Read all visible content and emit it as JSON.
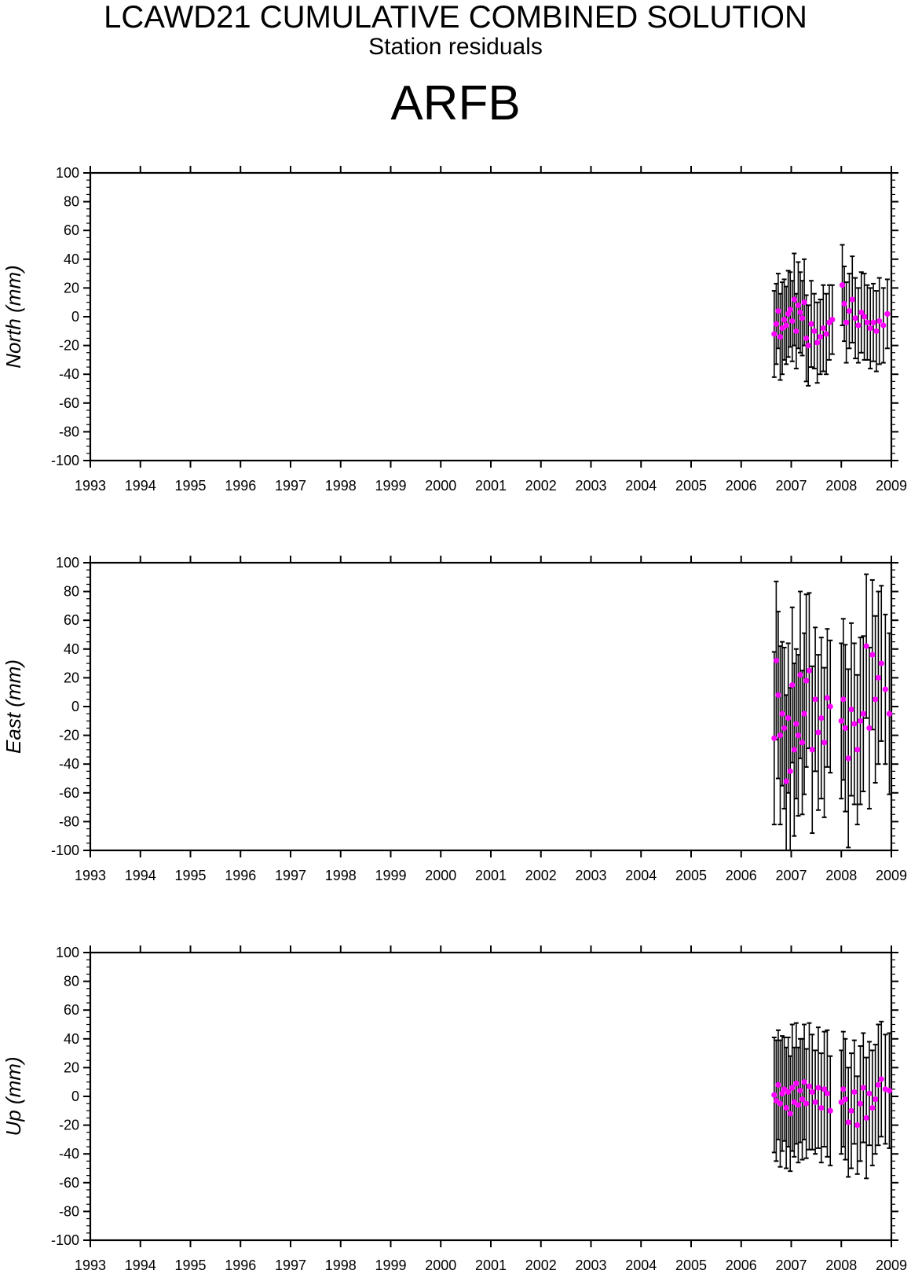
{
  "header": {
    "title": "LCAWD21 CUMULATIVE COMBINED SOLUTION",
    "subtitle": "Station residuals",
    "station": "ARFB"
  },
  "colors": {
    "point": "#ff00ff",
    "axis": "#000000",
    "errorbar": "#000000"
  },
  "chart_data": [
    {
      "type": "scatter",
      "ylabel": "North (mm)",
      "xlim": [
        1993,
        2009
      ],
      "ylim": [
        -100,
        100
      ],
      "xticks": [
        "1993",
        "1994",
        "1995",
        "1996",
        "1997",
        "1998",
        "1999",
        "2000",
        "2001",
        "2002",
        "2003",
        "2004",
        "2005",
        "2006",
        "2007",
        "2008",
        "2009"
      ],
      "yticks": [
        "100",
        "80",
        "60",
        "40",
        "20",
        "0",
        "-20",
        "-40",
        "-60",
        "-80",
        "-100"
      ],
      "grid": false,
      "error_bars": true,
      "series": [
        {
          "x": [
            2006.66,
            2006.7,
            2006.74,
            2006.78,
            2006.82,
            2006.86,
            2006.9,
            2006.94,
            2006.98,
            2007.02,
            2007.06,
            2007.1,
            2007.14,
            2007.18,
            2007.22,
            2007.26,
            2007.3,
            2007.34,
            2007.4,
            2007.46,
            2007.52,
            2007.58,
            2007.64,
            2007.7,
            2007.76,
            2007.82,
            2008.02,
            2008.06,
            2008.1,
            2008.16,
            2008.22,
            2008.28,
            2008.34,
            2008.4,
            2008.46,
            2008.52,
            2008.58,
            2008.64,
            2008.7,
            2008.76,
            2008.84,
            2008.92
          ],
          "y": [
            -12,
            -5,
            4,
            -14,
            -8,
            -2,
            -6,
            2,
            5,
            -3,
            12,
            -10,
            8,
            3,
            -1,
            10,
            -15,
            -20,
            -5,
            -10,
            -18,
            -14,
            -8,
            -12,
            -4,
            -2,
            22,
            9,
            -4,
            4,
            12,
            -1,
            -6,
            3,
            0,
            -4,
            -8,
            -4,
            -10,
            -3,
            -6,
            2
          ],
          "yerr": [
            30,
            28,
            26,
            30,
            32,
            28,
            27,
            30,
            26,
            28,
            32,
            26,
            30,
            28,
            26,
            30,
            30,
            28,
            30,
            26,
            28,
            26,
            30,
            28,
            26,
            24,
            28,
            26,
            28,
            26,
            30,
            28,
            26,
            28,
            30,
            26,
            28,
            27,
            28,
            30,
            26,
            24
          ]
        }
      ]
    },
    {
      "type": "scatter",
      "ylabel": "East (mm)",
      "xlim": [
        1993,
        2009
      ],
      "ylim": [
        -100,
        100
      ],
      "xticks": [
        "1993",
        "1994",
        "1995",
        "1996",
        "1997",
        "1998",
        "1999",
        "2000",
        "2001",
        "2002",
        "2003",
        "2004",
        "2005",
        "2006",
        "2007",
        "2008",
        "2009"
      ],
      "yticks": [
        "100",
        "80",
        "60",
        "40",
        "20",
        "0",
        "-20",
        "-40",
        "-60",
        "-80",
        "-100"
      ],
      "grid": false,
      "error_bars": true,
      "series": [
        {
          "x": [
            2006.66,
            2006.7,
            2006.74,
            2006.78,
            2006.82,
            2006.86,
            2006.9,
            2006.94,
            2006.98,
            2007.02,
            2007.06,
            2007.1,
            2007.14,
            2007.18,
            2007.22,
            2007.26,
            2007.3,
            2007.36,
            2007.42,
            2007.48,
            2007.54,
            2007.6,
            2007.66,
            2007.72,
            2007.78,
            2008.0,
            2008.04,
            2008.08,
            2008.14,
            2008.2,
            2008.26,
            2008.32,
            2008.38,
            2008.44,
            2008.5,
            2008.56,
            2008.62,
            2008.68,
            2008.74,
            2008.8,
            2008.88,
            2008.96
          ],
          "y": [
            -22,
            32,
            8,
            -20,
            -5,
            -15,
            -52,
            -8,
            -45,
            15,
            -30,
            -12,
            -20,
            22,
            -25,
            -5,
            18,
            25,
            -30,
            5,
            -18,
            -8,
            -25,
            6,
            0,
            -10,
            5,
            -15,
            -36,
            -2,
            -12,
            -30,
            -10,
            -5,
            42,
            -15,
            36,
            5,
            20,
            30,
            12,
            -5
          ],
          "yerr": [
            60,
            55,
            58,
            62,
            50,
            56,
            60,
            52,
            58,
            54,
            60,
            52,
            56,
            58,
            50,
            56,
            60,
            54,
            58,
            50,
            54,
            56,
            52,
            48,
            46,
            54,
            56,
            58,
            62,
            60,
            56,
            52,
            58,
            54,
            50,
            56,
            52,
            58,
            60,
            54,
            52,
            56
          ]
        }
      ]
    },
    {
      "type": "scatter",
      "ylabel": "Up (mm)",
      "xlim": [
        1993,
        2009
      ],
      "ylim": [
        -100,
        100
      ],
      "xticks": [
        "1993",
        "1994",
        "1995",
        "1996",
        "1997",
        "1998",
        "1999",
        "2000",
        "2001",
        "2002",
        "2003",
        "2004",
        "2005",
        "2006",
        "2007",
        "2008",
        "2009"
      ],
      "yticks": [
        "100",
        "80",
        "60",
        "40",
        "20",
        "0",
        "-20",
        "-40",
        "-60",
        "-80",
        "-100"
      ],
      "grid": false,
      "error_bars": true,
      "series": [
        {
          "x": [
            2006.66,
            2006.7,
            2006.74,
            2006.78,
            2006.82,
            2006.86,
            2006.9,
            2006.94,
            2006.98,
            2007.02,
            2007.06,
            2007.1,
            2007.14,
            2007.18,
            2007.22,
            2007.26,
            2007.3,
            2007.36,
            2007.42,
            2007.48,
            2007.54,
            2007.6,
            2007.66,
            2007.72,
            2007.78,
            2008.0,
            2008.04,
            2008.08,
            2008.14,
            2008.2,
            2008.26,
            2008.32,
            2008.38,
            2008.44,
            2008.5,
            2008.56,
            2008.62,
            2008.68,
            2008.74,
            2008.8,
            2008.88,
            2008.96
          ],
          "y": [
            1,
            -3,
            8,
            -5,
            2,
            5,
            -8,
            3,
            -12,
            6,
            -4,
            9,
            -6,
            4,
            -2,
            10,
            -5,
            7,
            3,
            -4,
            6,
            -8,
            5,
            2,
            -10,
            -4,
            5,
            -2,
            -18,
            -10,
            3,
            -20,
            -5,
            6,
            -15,
            2,
            -8,
            -2,
            8,
            12,
            5,
            4
          ],
          "yerr": [
            40,
            42,
            38,
            44,
            40,
            36,
            42,
            38,
            40,
            44,
            38,
            42,
            40,
            36,
            42,
            40,
            38,
            44,
            40,
            36,
            42,
            38,
            40,
            44,
            38,
            36,
            40,
            42,
            38,
            40,
            36,
            34,
            40,
            38,
            42,
            36,
            40,
            38,
            42,
            40,
            38,
            40
          ]
        }
      ]
    }
  ]
}
